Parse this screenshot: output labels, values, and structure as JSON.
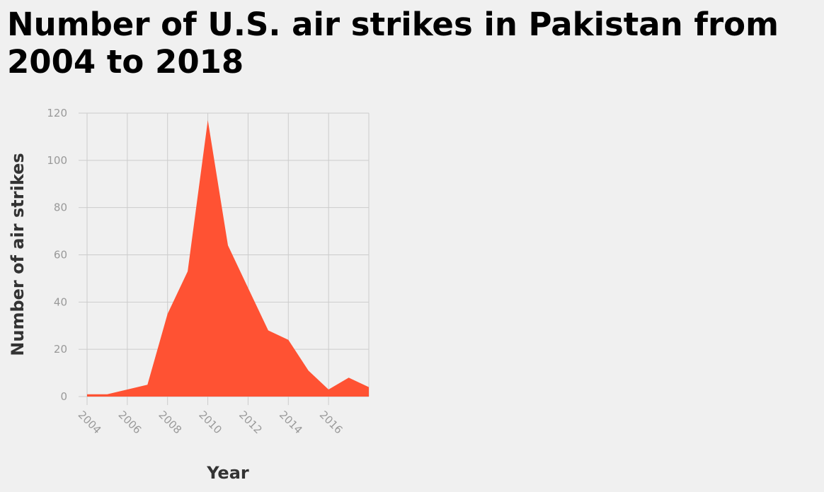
{
  "chart_data": {
    "type": "area",
    "title": "Number of U.S. air strikes in Pakistan from 2004 to 2018",
    "xlabel": "Year",
    "ylabel": "Number of air strikes",
    "x": [
      2004,
      2005,
      2006,
      2007,
      2008,
      2009,
      2010,
      2011,
      2012,
      2013,
      2014,
      2015,
      2016,
      2017,
      2018
    ],
    "values": [
      1,
      1,
      3,
      5,
      35,
      53,
      117,
      64,
      46,
      28,
      24,
      11,
      3,
      8,
      4
    ],
    "xticks": [
      "2004",
      "2006",
      "2008",
      "2010",
      "2012",
      "2014",
      "2016"
    ],
    "yticks": [
      "0",
      "20",
      "40",
      "60",
      "80",
      "100",
      "120"
    ],
    "xlim": [
      2004,
      2018
    ],
    "ylim": [
      0,
      120
    ],
    "grid": true,
    "colors": {
      "fill": "#ff5233",
      "grid": "#cccccc",
      "tick_text": "#999999"
    }
  }
}
